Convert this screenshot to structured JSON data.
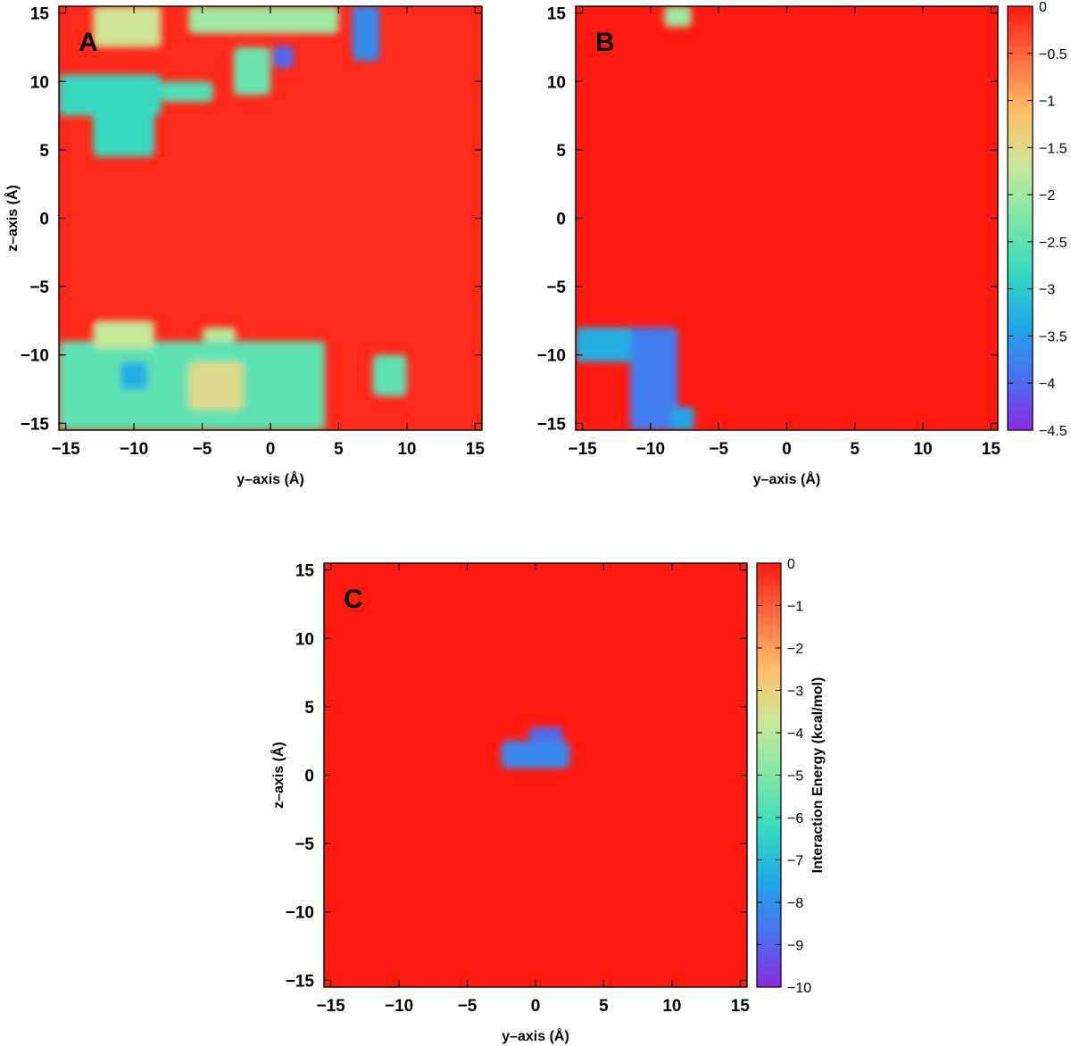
{
  "colors": {
    "background_red": "#ff0000",
    "colormap": [
      "#8a2be2",
      "#4a6ff0",
      "#1fa8e8",
      "#36d9c0",
      "#7fe8a6",
      "#c7e89a",
      "#ffbf6a",
      "#ff6a40",
      "#ff1a10"
    ]
  },
  "chart_data": [
    {
      "type": "heatmap",
      "panel_label": "A",
      "xlabel": "y–axis (Å)",
      "ylabel": "z–axis (Å)",
      "xlim": [
        -15.5,
        15.5
      ],
      "ylim": [
        -15.5,
        15.5
      ],
      "xticks": [
        -15,
        -10,
        -5,
        0,
        5,
        10,
        15
      ],
      "yticks": [
        -15,
        -10,
        -5,
        0,
        5,
        10,
        15
      ],
      "background_value": -0.1,
      "regions": [
        {
          "y": [
            -6,
            5
          ],
          "z": [
            13.5,
            15.5
          ],
          "value": -2.0
        },
        {
          "y": [
            -13,
            -8
          ],
          "z": [
            12.5,
            15.5
          ],
          "value": -1.6
        },
        {
          "y": [
            -2.7,
            0
          ],
          "z": [
            9,
            12.5
          ],
          "value": -2.4
        },
        {
          "y": [
            -15.5,
            -8
          ],
          "z": [
            7.5,
            10.5
          ],
          "value": -2.8
        },
        {
          "y": [
            -13,
            -8.5
          ],
          "z": [
            4.5,
            8
          ],
          "value": -2.8
        },
        {
          "y": [
            -8,
            -4.2
          ],
          "z": [
            8.5,
            10
          ],
          "value": -2.6
        },
        {
          "y": [
            0.2,
            1.7
          ],
          "z": [
            11,
            12.6
          ],
          "value": -4.0
        },
        {
          "y": [
            6,
            8
          ],
          "z": [
            11.5,
            15.5
          ],
          "value": -3.7
        },
        {
          "y": [
            -15.5,
            4
          ],
          "z": [
            -15.5,
            -9
          ],
          "value": -2.5
        },
        {
          "y": [
            -13,
            -8.5
          ],
          "z": [
            -9.5,
            -7.5
          ],
          "value": -1.7
        },
        {
          "y": [
            -5,
            -2.5
          ],
          "z": [
            -9,
            -8
          ],
          "value": -1.8
        },
        {
          "y": [
            7.5,
            10
          ],
          "z": [
            -13,
            -10
          ],
          "value": -2.5
        },
        {
          "y": [
            -11,
            -9
          ],
          "z": [
            -12.5,
            -10.5
          ],
          "value": -3.3
        },
        {
          "y": [
            -6,
            -2
          ],
          "z": [
            -14,
            -10.5
          ],
          "value": -1.5
        }
      ]
    },
    {
      "type": "heatmap",
      "panel_label": "B",
      "xlabel": "y–axis (Å)",
      "ylabel": "",
      "xlim": [
        -15.5,
        15.5
      ],
      "ylim": [
        -15.5,
        15.5
      ],
      "xticks": [
        -15,
        -10,
        -5,
        0,
        5,
        10,
        15
      ],
      "yticks": [
        -15,
        -10,
        -5,
        0,
        5,
        10,
        15
      ],
      "background_value": 0,
      "regions": [
        {
          "y": [
            -9,
            -7
          ],
          "z": [
            14,
            15.5
          ],
          "value": -2.0
        },
        {
          "y": [
            -15.5,
            -9.5
          ],
          "z": [
            -10.5,
            -8
          ],
          "value": -3.3
        },
        {
          "y": [
            -11.5,
            -8
          ],
          "z": [
            -15.5,
            -8
          ],
          "value": -3.8
        },
        {
          "y": [
            -8.5,
            -6.8
          ],
          "z": [
            -15.5,
            -13.8
          ],
          "value": -3.4
        }
      ],
      "colorbar": {
        "min": -4.5,
        "max": 0,
        "ticks": [
          0,
          -0.5,
          -1,
          -1.5,
          -2,
          -2.5,
          -3,
          -3.5,
          -4,
          -4.5
        ],
        "label": ""
      }
    },
    {
      "type": "heatmap",
      "panel_label": "C",
      "xlabel": "y–axis (Å)",
      "ylabel": "z–axis (Å)",
      "xlim": [
        -15.5,
        15.5
      ],
      "ylim": [
        -15.5,
        15.5
      ],
      "xticks": [
        -15,
        -10,
        -5,
        0,
        5,
        10,
        15
      ],
      "yticks": [
        -15,
        -10,
        -5,
        0,
        5,
        10,
        15
      ],
      "background_value": 0,
      "regions": [
        {
          "y": [
            -2.5,
            2.5
          ],
          "z": [
            0.5,
            2.5
          ],
          "value": -8.2
        },
        {
          "y": [
            -0.5,
            2
          ],
          "z": [
            2.5,
            3.5
          ],
          "value": -8.8
        }
      ],
      "colorbar": {
        "min": -10,
        "max": 0,
        "ticks": [
          0,
          -1,
          -2,
          -3,
          -4,
          -5,
          -6,
          -7,
          -8,
          -9,
          -10
        ],
        "label": "Interaction Energy (kcal/mol)"
      }
    }
  ]
}
